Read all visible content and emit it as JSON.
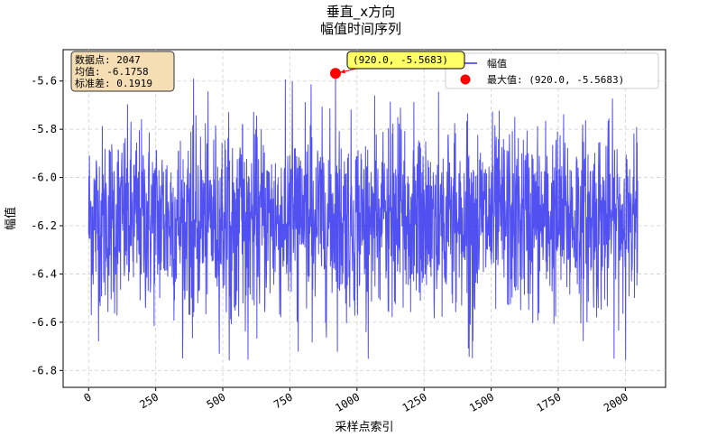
{
  "chart_data": {
    "type": "line",
    "title_line1": "垂直_x方向",
    "title_line2": "幅值时间序列",
    "xlabel": "采样点索引",
    "ylabel": "幅值",
    "xlim": [
      -95,
      2150
    ],
    "ylim": [
      -6.87,
      -5.47
    ],
    "xticks": [
      0,
      250,
      500,
      750,
      1000,
      1250,
      1500,
      1750,
      2000
    ],
    "yticks": [
      -6.8,
      -6.6,
      -6.4,
      -6.2,
      -6.0,
      -5.8,
      -5.6
    ],
    "ytick_labels": [
      "-6.8",
      "-6.6",
      "-6.4",
      "-6.2",
      "-6.0",
      "-5.8",
      "-5.6"
    ],
    "grid": true,
    "legend_position": "top-right",
    "series": [
      {
        "name": "幅值",
        "color": "#3333ee",
        "n_points": 2047,
        "mean": -6.1758,
        "std": 0.1919,
        "y_min": -6.76,
        "y_max": -5.5683
      }
    ],
    "highlight": {
      "name": "最大值",
      "x": 920.0,
      "y": -5.5683,
      "color": "#ff0000"
    },
    "legend": {
      "line_label": "幅值",
      "marker_label": "最大值: (920.0, -5.5683)"
    },
    "annotation": {
      "text": "(920.0, -5.5683)",
      "color": "#ffff66"
    },
    "stats_box": {
      "line1": "数据点: 2047",
      "line2": "均值: -6.1758",
      "line3": "标准差: 0.1919",
      "color": "#f5deb3"
    }
  }
}
